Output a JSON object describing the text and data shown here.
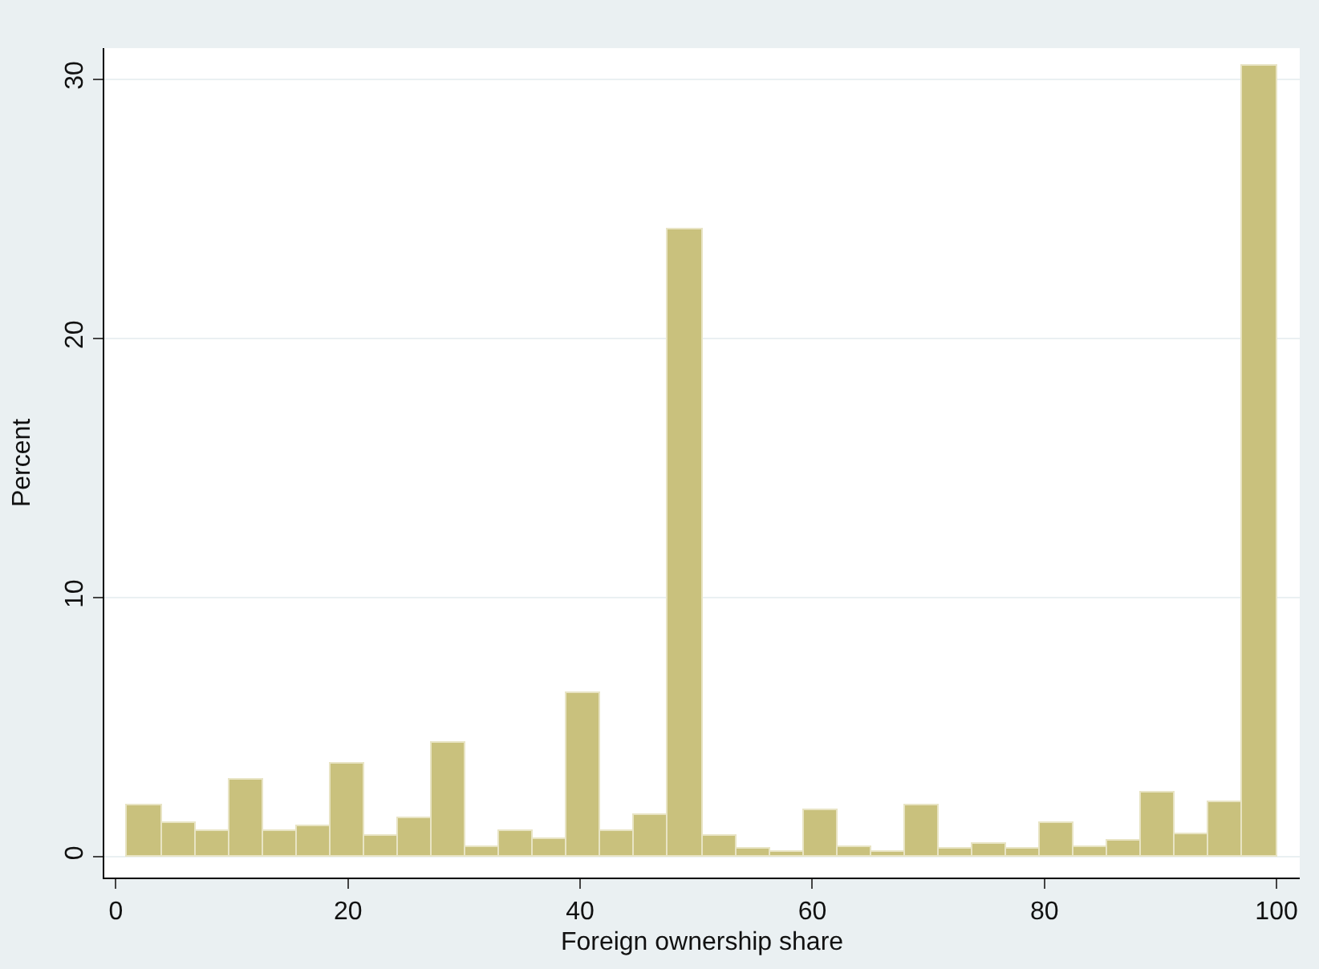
{
  "chart_data": {
    "type": "histogram",
    "xlabel": "Foreign ownership share",
    "ylabel": "Percent",
    "bins": [
      1,
      3.91,
      6.82,
      9.74,
      12.65,
      15.56,
      18.47,
      21.38,
      24.29,
      27.21,
      30.12,
      33.03,
      35.94,
      38.85,
      41.76,
      44.68,
      47.59,
      50.5,
      53.41,
      56.32,
      59.24,
      62.15,
      65.06,
      67.97,
      70.88,
      73.79,
      76.71,
      79.62,
      82.53,
      85.44,
      88.35,
      91.26,
      94.18,
      97.09,
      100
    ],
    "values": [
      2.0,
      1.3,
      1.0,
      3.0,
      1.0,
      1.2,
      3.6,
      0.8,
      1.5,
      4.4,
      0.4,
      1.0,
      0.7,
      6.3,
      1.0,
      1.6,
      24.2,
      0.8,
      0.3,
      0.2,
      1.8,
      0.4,
      0.2,
      2.0,
      0.3,
      0.5,
      0.3,
      1.3,
      0.4,
      0.6,
      2.5,
      0.9,
      2.1,
      30.5
    ],
    "color": "#c9c17d",
    "xlim": [
      -1,
      102
    ],
    "ylim": [
      -0.8,
      31.2
    ],
    "xticks": [
      0,
      20,
      40,
      60,
      80,
      100
    ],
    "yticks": [
      0,
      10,
      20,
      30
    ],
    "grid": "y"
  }
}
